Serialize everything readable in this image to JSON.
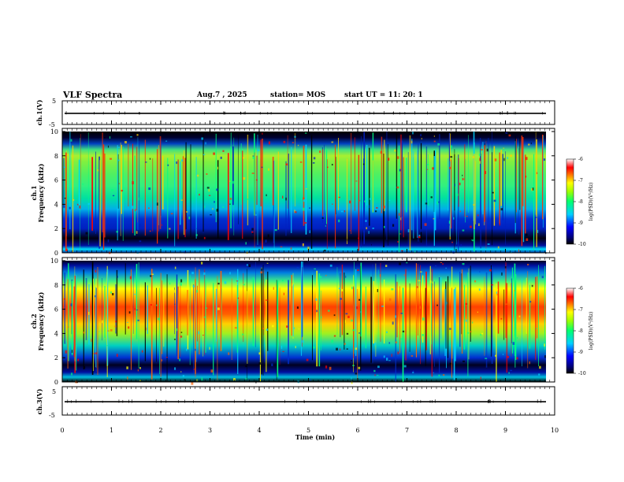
{
  "header": {
    "title": "VLF Spectra",
    "date": "Aug.7  , 2025",
    "station": "station= MOS",
    "start_ut": "start  UT  =    11: 20: 1"
  },
  "chart_data": [
    {
      "type": "line",
      "panel": "ch1-waveform",
      "ylabel": "ch.1(V)",
      "xlim": [
        0,
        10
      ],
      "ylim": [
        -5,
        5
      ],
      "yticks": [
        "5",
        "-5"
      ],
      "series": [
        {
          "values": [
            -0.3,
            -0.3
          ]
        }
      ]
    },
    {
      "type": "heatmap",
      "panel": "ch1-spectrogram",
      "ylabel_top": "ch.1",
      "ylabel": "Frequency (kHz)",
      "xlim": [
        0,
        10
      ],
      "ylim": [
        0,
        10
      ],
      "yticks": [
        "0",
        "2",
        "4",
        "6",
        "8",
        "10"
      ],
      "colorbar": {
        "label": "log(PSD)(V²/Hz)",
        "ticks": [
          "-6",
          "-7",
          "-8",
          "-9",
          "-10"
        ],
        "range": [
          -10,
          -6
        ]
      }
    },
    {
      "type": "heatmap",
      "panel": "ch2-spectrogram",
      "ylabel_top": "ch.2",
      "ylabel": "Frequency (kHz)",
      "xlim": [
        0,
        10
      ],
      "ylim": [
        0,
        10
      ],
      "yticks": [
        "0",
        "2",
        "4",
        "6",
        "8",
        "10"
      ],
      "colorbar": {
        "label": "log(PSD)(V²/Hz)",
        "ticks": [
          "-6",
          "-7",
          "-8",
          "-9",
          "-10"
        ],
        "range": [
          -10,
          -6
        ]
      }
    },
    {
      "type": "line",
      "panel": "ch3-waveform",
      "ylabel": "ch.3(V)",
      "xlim": [
        0,
        10
      ],
      "ylim": [
        -5,
        5
      ],
      "yticks": [
        "5",
        "-5"
      ],
      "xlabel": "Time  (min)",
      "xticks": [
        "0",
        "1",
        "2",
        "3",
        "4",
        "5",
        "6",
        "7",
        "8",
        "9",
        "10"
      ],
      "series": [
        {
          "values": [
            -0.3,
            -0.3
          ]
        }
      ]
    }
  ],
  "colors": {
    "spectrum_scale": [
      "#000000",
      "#000080",
      "#0000ff",
      "#00c8ff",
      "#00ff80",
      "#80ff00",
      "#ffff00",
      "#ff8000",
      "#ff0000",
      "#ffffff"
    ]
  }
}
